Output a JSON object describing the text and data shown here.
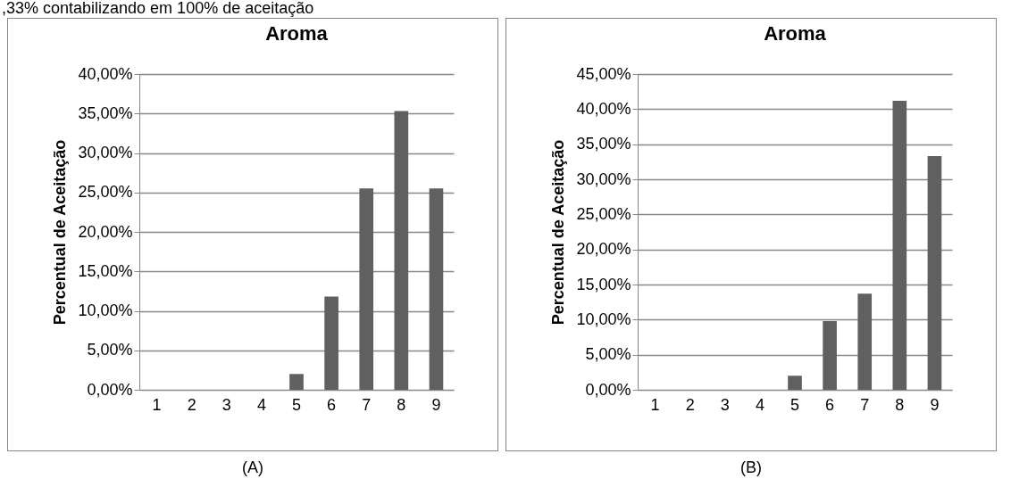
{
  "chart_data": [
    {
      "type": "bar",
      "title": "Aroma",
      "ylabel": "Percentual de Aceitação",
      "categories": [
        "1",
        "2",
        "3",
        "4",
        "5",
        "6",
        "7",
        "8",
        "9"
      ],
      "values": [
        0,
        0,
        0,
        0,
        2.0,
        11.8,
        25.5,
        35.3,
        25.5
      ],
      "color": "#606060",
      "ylim": [
        0,
        40
      ],
      "yticks": [
        {
          "value": 0,
          "label": "0,00%"
        },
        {
          "value": 5,
          "label": "5,00%"
        },
        {
          "value": 10,
          "label": "10,00%"
        },
        {
          "value": 15,
          "label": "15,00%"
        },
        {
          "value": 20,
          "label": "20,00%"
        },
        {
          "value": 25,
          "label": "25,00%"
        },
        {
          "value": 30,
          "label": "30,00%"
        },
        {
          "value": 35,
          "label": "35,00%"
        },
        {
          "value": 40,
          "label": "40,00%"
        }
      ],
      "grid": "y",
      "annotations": [
        ",33% contabilizando em 100% de aceitação",
        "(A)"
      ]
    },
    {
      "type": "bar",
      "title": "Aroma",
      "ylabel": "Percentual de Aceitação",
      "categories": [
        "1",
        "2",
        "3",
        "4",
        "5",
        "6",
        "7",
        "8",
        "9"
      ],
      "values": [
        0,
        0,
        0,
        0,
        2.0,
        9.8,
        13.7,
        41.2,
        33.3
      ],
      "color": "#606060",
      "ylim": [
        0,
        45
      ],
      "yticks": [
        {
          "value": 0,
          "label": "0,00%"
        },
        {
          "value": 5,
          "label": "5,00%"
        },
        {
          "value": 10,
          "label": "10,00%"
        },
        {
          "value": 15,
          "label": "15,00%"
        },
        {
          "value": 20,
          "label": "20,00%"
        },
        {
          "value": 25,
          "label": "25,00%"
        },
        {
          "value": 30,
          "label": "30,00%"
        },
        {
          "value": 35,
          "label": "35,00%"
        },
        {
          "value": 40,
          "label": "40,00%"
        },
        {
          "value": 45,
          "label": "45,00%"
        }
      ],
      "grid": "y",
      "annotations": [
        "(B)"
      ]
    }
  ]
}
